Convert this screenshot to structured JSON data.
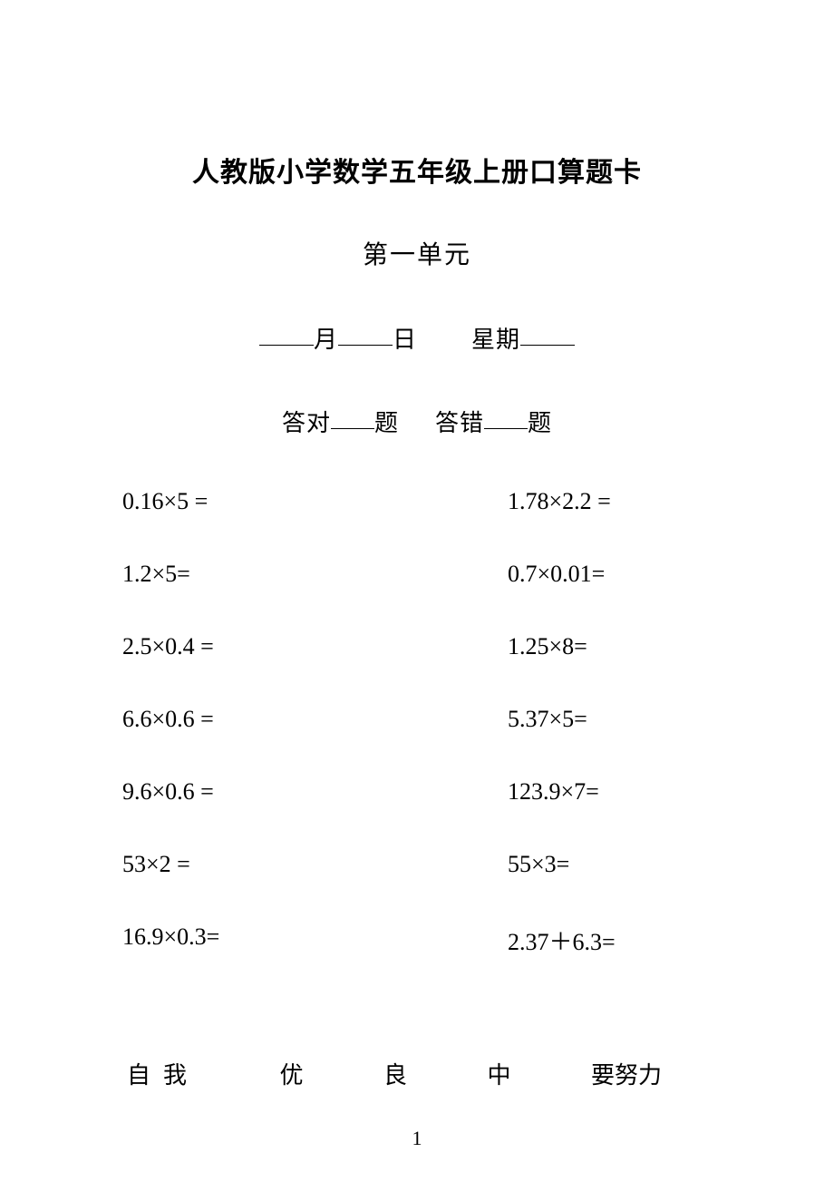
{
  "title": "人教版小学数学五年级上册口算题卡",
  "unit": "第一单元",
  "date": {
    "monthLabel": "月",
    "dayLabel": "日",
    "weekdayLabel": "星期"
  },
  "score": {
    "correctPrefix": "答对",
    "correctSuffix": "题",
    "wrongPrefix": "答错",
    "wrongSuffix": "题"
  },
  "problems": {
    "left": [
      "0.16×5 =",
      "1.2×5=",
      "2.5×0.4 =",
      "6.6×0.6 =",
      "9.6×0.6 =",
      "53×2 =",
      "16.9×0.3="
    ],
    "right": [
      "1.78×2.2 =",
      "0.7×0.01=",
      "1.25×8=",
      "5.37×5=",
      "123.9×7=",
      "55×3=",
      "2.37＋6.3="
    ]
  },
  "selfEval": {
    "label": "自我",
    "options": [
      "优",
      "良",
      "中",
      "要努力"
    ]
  },
  "pageNumber": "1"
}
